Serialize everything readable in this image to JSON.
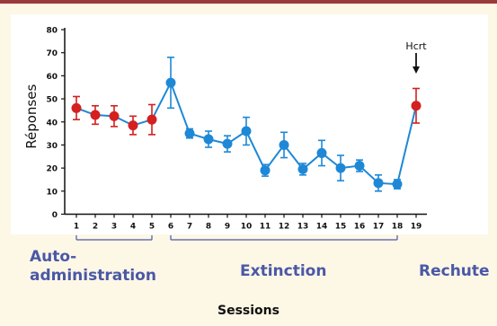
{
  "chart_data": {
    "type": "line",
    "title": "",
    "xlabel": "Sessions",
    "ylabel": "Réponses",
    "x": [
      1,
      2,
      3,
      4,
      5,
      6,
      7,
      8,
      9,
      10,
      11,
      12,
      13,
      14,
      15,
      16,
      17,
      18,
      19
    ],
    "ylim": [
      0,
      80
    ],
    "yticks": [
      0,
      10,
      20,
      30,
      40,
      50,
      60,
      70,
      80
    ],
    "grid": false,
    "series": [
      {
        "phase": "Auto-administration",
        "color": "#d42020",
        "x": [
          1,
          2,
          3,
          4,
          5
        ],
        "y": [
          46,
          43,
          42.5,
          38.5,
          41
        ],
        "error": [
          5,
          4,
          4.5,
          4,
          6.5
        ]
      },
      {
        "phase": "Extinction",
        "color": "#1e88d6",
        "x": [
          6,
          7,
          8,
          9,
          10,
          11,
          12,
          13,
          14,
          15,
          16,
          17,
          18
        ],
        "y": [
          57,
          35,
          32.5,
          30.5,
          36,
          19,
          30,
          19.5,
          26.5,
          20,
          21,
          13.5,
          13
        ],
        "error": [
          11,
          2,
          3.5,
          3.5,
          6,
          2.5,
          5.5,
          2.5,
          5.5,
          5.5,
          2.5,
          3.5,
          2
        ]
      },
      {
        "phase": "Rechute",
        "color": "#d42020",
        "x": [
          19
        ],
        "y": [
          47
        ],
        "error": [
          7.5
        ]
      }
    ],
    "annotations": [
      {
        "text": "Hcrt",
        "x": 19,
        "arrow": "down"
      }
    ],
    "phases": [
      {
        "label": "Auto-administration",
        "from": 1,
        "to": 5
      },
      {
        "label": "Extinction",
        "from": 6,
        "to": 18
      },
      {
        "label": "Rechute",
        "from": 19,
        "to": 19
      }
    ],
    "connector_color": "#1e88d6",
    "axis_color": "#111111",
    "bracket_color": "#4a58a6"
  },
  "phase_labels": {
    "auto_line1": "Auto-",
    "auto_line2": "administration",
    "extinction": "Extinction",
    "rechute": "Rechute"
  },
  "annotation_text": "Hcrt",
  "x_axis_title": "Sessions",
  "y_axis_title": "Réponses"
}
